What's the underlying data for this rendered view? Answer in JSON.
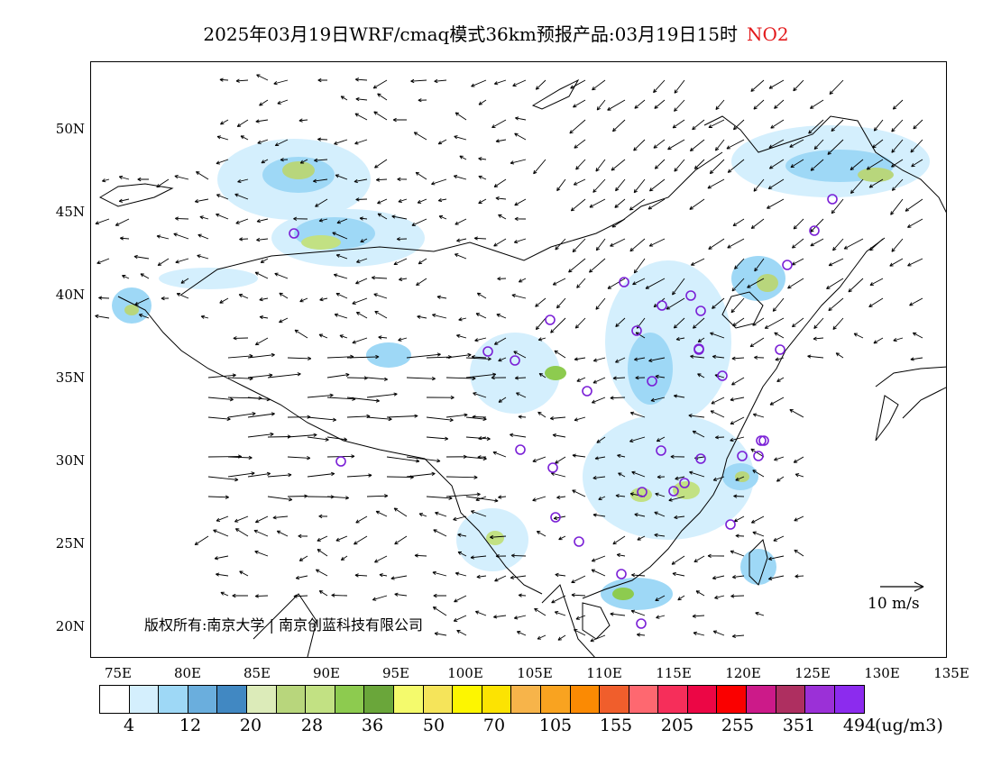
{
  "header": {
    "title": "2025年03月19日WRF/cmaq模式36km预报产品:03月19日15时",
    "species": "NO2"
  },
  "map": {
    "lat_labels": [
      "50N",
      "45N",
      "40N",
      "35N",
      "30N",
      "25N",
      "20N"
    ],
    "lon_labels": [
      "75E",
      "80E",
      "85E",
      "90E",
      "95E",
      "100E",
      "105E",
      "110E",
      "115E",
      "120E",
      "125E",
      "130E",
      "135E"
    ],
    "copyright": "版权所有:南京大学 | 南京创蓝科技有限公司",
    "wind_scale_label": "10 m/s"
  },
  "legend": {
    "colors": [
      "#ffffff",
      "#d4effd",
      "#9ed8f6",
      "#6aaedd",
      "#4188c2",
      "#dcebb9",
      "#b8d67c",
      "#c2e183",
      "#8dcb4f",
      "#6aa63a",
      "#f4fa6c",
      "#f5e45a",
      "#fdf600",
      "#fce302",
      "#f7b44a",
      "#f9a320",
      "#fb8a03",
      "#f05e2c",
      "#fe6870",
      "#f62e5a",
      "#ec0645",
      "#fa0000",
      "#cc1a89",
      "#ae2f60",
      "#9b30d7",
      "#8c2bee"
    ],
    "labels": [
      "4",
      "12",
      "20",
      "28",
      "36",
      "50",
      "70",
      "105",
      "155",
      "205",
      "255",
      "351",
      "494"
    ],
    "unit": "(ug/m3)"
  }
}
